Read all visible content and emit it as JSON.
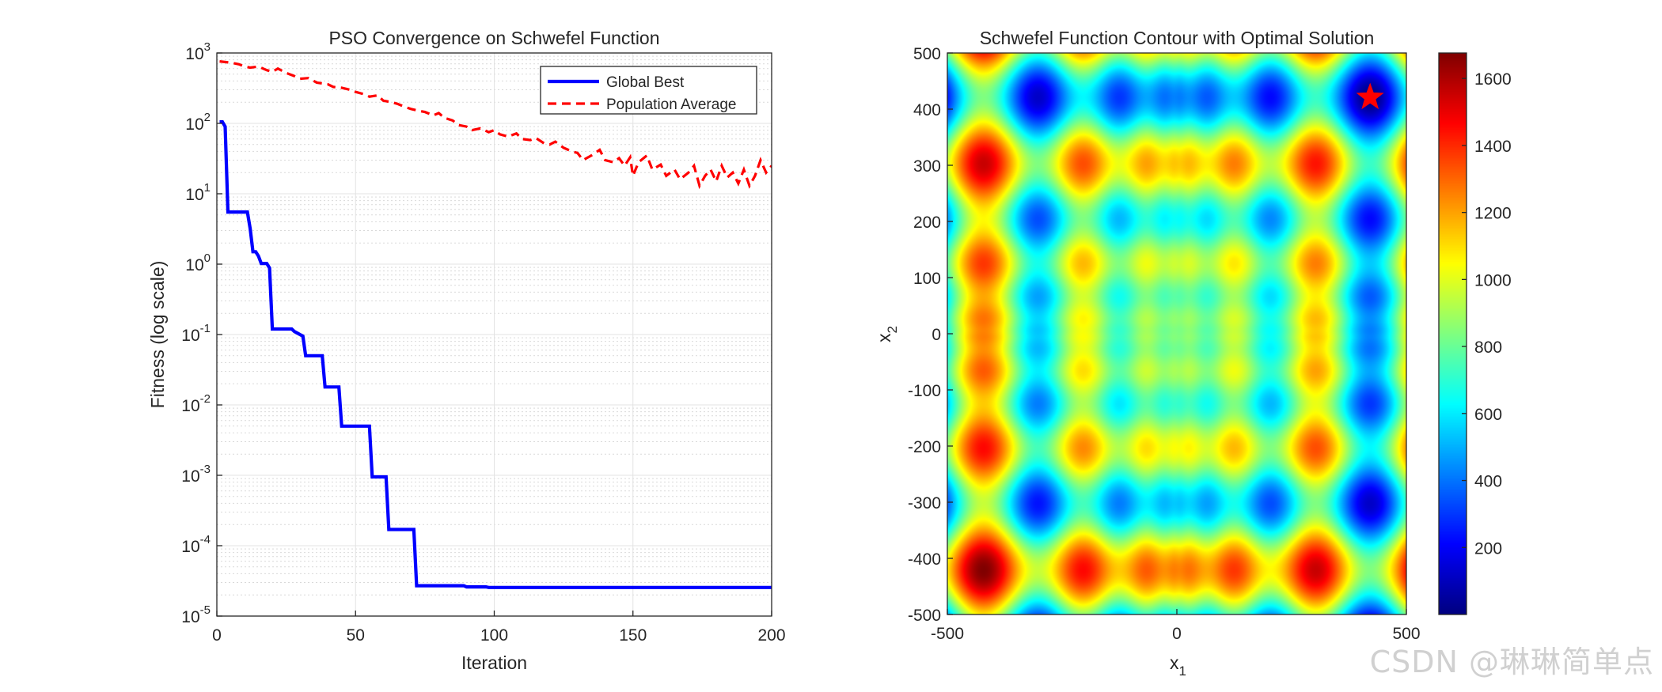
{
  "chart_data": [
    {
      "type": "line",
      "title": "PSO Convergence on Schwefel Function",
      "xlabel": "Iteration",
      "ylabel": "Fitness (log scale)",
      "xlim": [
        0,
        200
      ],
      "ylim": [
        1e-05,
        1000
      ],
      "yscale": "log",
      "grid": true,
      "legend_position": "top-right",
      "x_ticks": [
        "0",
        "50",
        "100",
        "150",
        "200"
      ],
      "y_ticks": [
        {
          "base": "10",
          "exp": "-5"
        },
        {
          "base": "10",
          "exp": "-4"
        },
        {
          "base": "10",
          "exp": "-3"
        },
        {
          "base": "10",
          "exp": "-2"
        },
        {
          "base": "10",
          "exp": "-1"
        },
        {
          "base": "10",
          "exp": "0"
        },
        {
          "base": "10",
          "exp": "1"
        },
        {
          "base": "10",
          "exp": "2"
        },
        {
          "base": "10",
          "exp": "3"
        }
      ],
      "series": [
        {
          "name": "Global Best",
          "color": "#0000ff",
          "style": "solid",
          "points": [
            [
              1,
              105
            ],
            [
              2,
              105
            ],
            [
              3,
              90
            ],
            [
              4,
              5.5
            ],
            [
              11,
              5.5
            ],
            [
              12,
              3.2
            ],
            [
              13,
              1.5
            ],
            [
              14,
              1.5
            ],
            [
              15,
              1.3
            ],
            [
              16,
              1.02
            ],
            [
              18,
              1.02
            ],
            [
              19,
              0.88
            ],
            [
              20,
              0.12
            ],
            [
              27,
              0.12
            ],
            [
              28,
              0.11
            ],
            [
              29,
              0.105
            ],
            [
              31,
              0.095
            ],
            [
              32,
              0.05
            ],
            [
              38,
              0.05
            ],
            [
              39,
              0.018
            ],
            [
              44,
              0.018
            ],
            [
              45,
              0.005
            ],
            [
              55,
              0.005
            ],
            [
              56,
              0.00095
            ],
            [
              61,
              0.00095
            ],
            [
              62,
              0.00017
            ],
            [
              71,
              0.00017
            ],
            [
              72,
              2.7e-05
            ],
            [
              89,
              2.7e-05
            ],
            [
              90,
              2.6e-05
            ],
            [
              97,
              2.6e-05
            ],
            [
              98,
              2.55e-05
            ],
            [
              200,
              2.55e-05
            ]
          ]
        },
        {
          "name": "Population Average",
          "color": "#ff0000",
          "style": "dashed",
          "points": [
            [
              1,
              760
            ],
            [
              5,
              730
            ],
            [
              8,
              690
            ],
            [
              10,
              640
            ],
            [
              12,
              620
            ],
            [
              15,
              640
            ],
            [
              18,
              570
            ],
            [
              20,
              540
            ],
            [
              22,
              600
            ],
            [
              25,
              520
            ],
            [
              28,
              470
            ],
            [
              30,
              430
            ],
            [
              33,
              440
            ],
            [
              36,
              380
            ],
            [
              40,
              360
            ],
            [
              42,
              330
            ],
            [
              45,
              320
            ],
            [
              48,
              300
            ],
            [
              50,
              280
            ],
            [
              53,
              260
            ],
            [
              55,
              240
            ],
            [
              58,
              250
            ],
            [
              60,
              210
            ],
            [
              63,
              200
            ],
            [
              65,
              190
            ],
            [
              68,
              170
            ],
            [
              70,
              160
            ],
            [
              73,
              150
            ],
            [
              75,
              145
            ],
            [
              78,
              130
            ],
            [
              80,
              140
            ],
            [
              82,
              120
            ],
            [
              85,
              110
            ],
            [
              87,
              95
            ],
            [
              90,
              90
            ],
            [
              92,
              80
            ],
            [
              95,
              85
            ],
            [
              98,
              75
            ],
            [
              100,
              80
            ],
            [
              102,
              70
            ],
            [
              105,
              65
            ],
            [
              108,
              72
            ],
            [
              110,
              60
            ],
            [
              113,
              58
            ],
            [
              115,
              62
            ],
            [
              118,
              52
            ],
            [
              120,
              50
            ],
            [
              122,
              55
            ],
            [
              125,
              45
            ],
            [
              128,
              40
            ],
            [
              130,
              38
            ],
            [
              132,
              30
            ],
            [
              135,
              35
            ],
            [
              138,
              42
            ],
            [
              140,
              30
            ],
            [
              143,
              28
            ],
            [
              145,
              32
            ],
            [
              147,
              25
            ],
            [
              149,
              33
            ],
            [
              150,
              18
            ],
            [
              152,
              28
            ],
            [
              155,
              35
            ],
            [
              157,
              22
            ],
            [
              160,
              26
            ],
            [
              162,
              18
            ],
            [
              165,
              22
            ],
            [
              167,
              16
            ],
            [
              170,
              20
            ],
            [
              172,
              25
            ],
            [
              174,
              13
            ],
            [
              176,
              18
            ],
            [
              178,
              22
            ],
            [
              180,
              15
            ],
            [
              182,
              25
            ],
            [
              184,
              17
            ],
            [
              186,
              20
            ],
            [
              188,
              14
            ],
            [
              190,
              22
            ],
            [
              192,
              13
            ],
            [
              194,
              18
            ],
            [
              196,
              30
            ],
            [
              198,
              20
            ],
            [
              200,
              25
            ]
          ]
        }
      ]
    },
    {
      "type": "heatmap",
      "title": "Schwefel Function Contour with Optimal Solution",
      "xlabel": {
        "base": "x",
        "sub": "1"
      },
      "ylabel": {
        "base": "x",
        "sub": "2"
      },
      "xlim": [
        -500,
        500
      ],
      "ylim": [
        -500,
        500
      ],
      "x_ticks": [
        "-500",
        "0",
        "500"
      ],
      "y_ticks": [
        "-500",
        "-400",
        "-300",
        "-200",
        "-100",
        "0",
        "100",
        "200",
        "300",
        "400",
        "500"
      ],
      "colormap": "jet",
      "color_range": [
        0,
        1676
      ],
      "colorbar_ticks": [
        "200",
        "400",
        "600",
        "800",
        "1000",
        "1200",
        "1400",
        "1600"
      ],
      "optimum": {
        "x1": 420.97,
        "x2": 420.97,
        "marker": "star",
        "color": "#ff0000"
      }
    }
  ],
  "watermark": "CSDN @琳琳简单点"
}
